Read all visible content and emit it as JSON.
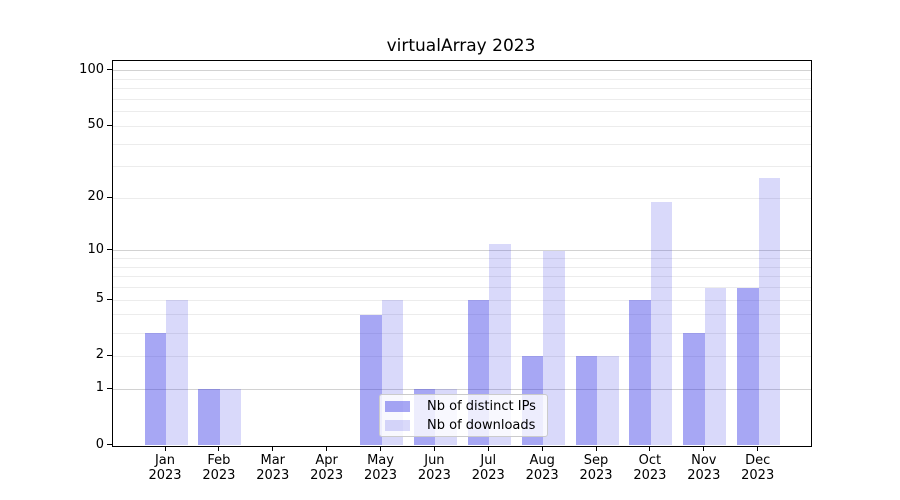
{
  "chart_data": {
    "type": "bar",
    "title": "virtualArray 2023",
    "xlabel": "",
    "ylabel": "",
    "background_color": "#ffffff",
    "categories": [
      {
        "month": "Jan",
        "year": "2023"
      },
      {
        "month": "Feb",
        "year": "2023"
      },
      {
        "month": "Mar",
        "year": "2023"
      },
      {
        "month": "Apr",
        "year": "2023"
      },
      {
        "month": "May",
        "year": "2023"
      },
      {
        "month": "Jun",
        "year": "2023"
      },
      {
        "month": "Jul",
        "year": "2023"
      },
      {
        "month": "Aug",
        "year": "2023"
      },
      {
        "month": "Sep",
        "year": "2023"
      },
      {
        "month": "Oct",
        "year": "2023"
      },
      {
        "month": "Nov",
        "year": "2023"
      },
      {
        "month": "Dec",
        "year": "2023"
      }
    ],
    "series": [
      {
        "name": "Nb of distinct IPs",
        "color": "rgba(51,51,230,0.43)",
        "values": [
          3,
          1,
          0,
          0,
          4,
          1,
          5,
          2,
          2,
          5,
          3,
          6
        ]
      },
      {
        "name": "Nb of downloads",
        "color": "rgba(51,51,230,0.19)",
        "values": [
          5,
          1,
          0,
          0,
          5,
          1,
          11,
          10,
          2,
          19,
          6,
          26
        ]
      }
    ],
    "y_axis": {
      "scale": "log1p",
      "labeled_ticks": [
        0,
        1,
        2,
        5,
        10,
        20,
        50,
        100
      ],
      "minor_gridlines": [
        2,
        3,
        4,
        5,
        6,
        7,
        8,
        9,
        20,
        30,
        40,
        50,
        60,
        70,
        80,
        90
      ],
      "major_gridlines": [
        1,
        10,
        100
      ],
      "min": 0,
      "max": 113,
      "minor_grid_color": "#ececec",
      "major_grid_color": "#d2d2d2"
    },
    "legend": {
      "position": "lower-center",
      "entries": [
        "Nb of distinct IPs",
        "Nb of downloads"
      ]
    },
    "grid": true
  }
}
